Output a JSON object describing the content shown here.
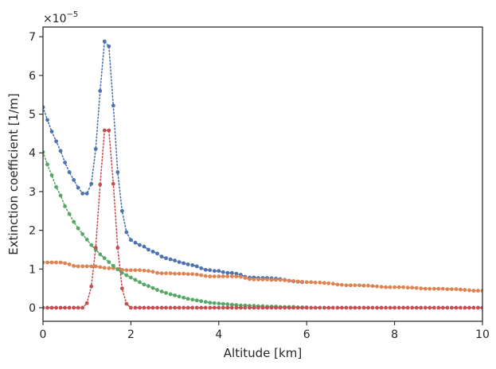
{
  "chart_data": {
    "type": "line",
    "title": "",
    "xlabel": "Altitude [km]",
    "ylabel": "Extinction coefficient [1/m]",
    "y_scale_label": "×10",
    "y_scale_exponent": "−5",
    "xlim": [
      0,
      10
    ],
    "ylim": [
      -0.35,
      7.25
    ],
    "y_multiplier": 1e-05,
    "x_ticks": [
      0,
      2,
      4,
      6,
      8,
      10
    ],
    "x_tick_labels": [
      "0",
      "2",
      "4",
      "6",
      "8",
      "10"
    ],
    "y_ticks": [
      0,
      1,
      2,
      3,
      4,
      5,
      6,
      7
    ],
    "y_tick_labels": [
      "0",
      "1",
      "2",
      "3",
      "4",
      "5",
      "6",
      "7"
    ],
    "grid": false,
    "legend": "none",
    "line_style": "dotted",
    "marker": "circle",
    "series": [
      {
        "color": "#4c72b0",
        "x": [
          0.0,
          0.1,
          0.2,
          0.3,
          0.4,
          0.5,
          0.6,
          0.7,
          0.8,
          0.9,
          1.0,
          1.1,
          1.2,
          1.3,
          1.4,
          1.5,
          1.6,
          1.7,
          1.8,
          1.9,
          2.0,
          2.1,
          2.2,
          2.3,
          2.4,
          2.5,
          2.6,
          2.7,
          2.8,
          2.9,
          3.0,
          3.1,
          3.2,
          3.3,
          3.4,
          3.5,
          3.6,
          3.7,
          3.8,
          3.9,
          4.0,
          4.1,
          4.2,
          4.3,
          4.4,
          4.5,
          4.6,
          4.7,
          4.8,
          4.9,
          5.0,
          5.1,
          5.2,
          5.3,
          5.4,
          5.5,
          5.6,
          5.7,
          5.8,
          5.9
        ],
        "values": [
          5.18,
          4.85,
          4.55,
          4.3,
          4.05,
          3.75,
          3.5,
          3.3,
          3.1,
          2.95,
          2.95,
          3.2,
          4.1,
          5.6,
          6.88,
          6.75,
          5.22,
          3.5,
          2.5,
          1.95,
          1.75,
          1.68,
          1.62,
          1.58,
          1.5,
          1.45,
          1.4,
          1.32,
          1.28,
          1.25,
          1.22,
          1.18,
          1.15,
          1.12,
          1.1,
          1.07,
          1.02,
          0.98,
          0.97,
          0.95,
          0.95,
          0.92,
          0.9,
          0.9,
          0.88,
          0.85,
          0.8,
          0.78,
          0.78,
          0.77,
          0.77,
          0.77,
          0.76,
          0.75,
          0.74,
          0.72,
          0.7,
          0.68,
          0.67,
          0.66
        ]
      },
      {
        "color": "#dd8452",
        "x": [
          0.0,
          0.1,
          0.2,
          0.3,
          0.4,
          0.5,
          0.6,
          0.7,
          0.8,
          0.9,
          1.0,
          1.1,
          1.2,
          1.3,
          1.4,
          1.5,
          1.6,
          1.7,
          1.8,
          1.9,
          2.0,
          2.1,
          2.2,
          2.3,
          2.4,
          2.5,
          2.6,
          2.7,
          2.8,
          2.9,
          3.0,
          3.1,
          3.2,
          3.3,
          3.4,
          3.5,
          3.6,
          3.7,
          3.8,
          3.9,
          4.0,
          4.1,
          4.2,
          4.3,
          4.4,
          4.5,
          4.6,
          4.7,
          4.8,
          4.9,
          5.0,
          5.1,
          5.2,
          5.3,
          5.4,
          5.5,
          5.6,
          5.7,
          5.8,
          5.9,
          6.0,
          6.1,
          6.2,
          6.3,
          6.4,
          6.5,
          6.6,
          6.7,
          6.8,
          6.9,
          7.0,
          7.1,
          7.2,
          7.3,
          7.4,
          7.5,
          7.6,
          7.7,
          7.8,
          7.9,
          8.0,
          8.1,
          8.2,
          8.3,
          8.4,
          8.5,
          8.6,
          8.7,
          8.8,
          8.9,
          9.0,
          9.1,
          9.2,
          9.3,
          9.4,
          9.5,
          9.6,
          9.7,
          9.8,
          9.9,
          10.0
        ],
        "values": [
          1.17,
          1.17,
          1.17,
          1.17,
          1.17,
          1.15,
          1.12,
          1.08,
          1.07,
          1.07,
          1.07,
          1.07,
          1.07,
          1.05,
          1.03,
          1.02,
          1.02,
          1.0,
          0.98,
          0.97,
          0.97,
          0.97,
          0.97,
          0.96,
          0.95,
          0.93,
          0.9,
          0.89,
          0.89,
          0.89,
          0.88,
          0.88,
          0.88,
          0.87,
          0.87,
          0.86,
          0.84,
          0.82,
          0.81,
          0.81,
          0.81,
          0.81,
          0.81,
          0.81,
          0.81,
          0.8,
          0.77,
          0.74,
          0.73,
          0.73,
          0.73,
          0.73,
          0.72,
          0.72,
          0.72,
          0.71,
          0.7,
          0.69,
          0.68,
          0.67,
          0.66,
          0.66,
          0.65,
          0.65,
          0.64,
          0.63,
          0.62,
          0.6,
          0.59,
          0.58,
          0.58,
          0.58,
          0.58,
          0.57,
          0.57,
          0.56,
          0.55,
          0.54,
          0.53,
          0.53,
          0.53,
          0.53,
          0.53,
          0.52,
          0.52,
          0.51,
          0.5,
          0.49,
          0.49,
          0.49,
          0.49,
          0.49,
          0.48,
          0.48,
          0.48,
          0.47,
          0.46,
          0.45,
          0.44,
          0.44,
          0.44
        ]
      },
      {
        "color": "#55a868",
        "x": [
          0.0,
          0.1,
          0.2,
          0.3,
          0.4,
          0.5,
          0.6,
          0.7,
          0.8,
          0.9,
          1.0,
          1.1,
          1.2,
          1.3,
          1.4,
          1.5,
          1.6,
          1.7,
          1.8,
          1.9,
          2.0,
          2.1,
          2.2,
          2.3,
          2.4,
          2.5,
          2.6,
          2.7,
          2.8,
          2.9,
          3.0,
          3.1,
          3.2,
          3.3,
          3.4,
          3.5,
          3.6,
          3.7,
          3.8,
          3.9,
          4.0,
          4.1,
          4.2,
          4.3,
          4.4,
          4.5,
          4.6,
          4.7,
          4.8,
          4.9,
          5.0,
          5.1,
          5.2,
          5.3,
          5.4,
          5.5,
          5.6,
          5.7,
          5.8,
          5.9,
          6.0
        ],
        "values": [
          4.02,
          3.7,
          3.42,
          3.12,
          2.9,
          2.62,
          2.42,
          2.22,
          2.05,
          1.9,
          1.76,
          1.62,
          1.5,
          1.38,
          1.28,
          1.18,
          1.08,
          0.99,
          0.9,
          0.84,
          0.78,
          0.72,
          0.66,
          0.6,
          0.56,
          0.51,
          0.46,
          0.42,
          0.38,
          0.35,
          0.32,
          0.29,
          0.26,
          0.23,
          0.21,
          0.19,
          0.17,
          0.15,
          0.13,
          0.12,
          0.11,
          0.1,
          0.09,
          0.08,
          0.07,
          0.06,
          0.06,
          0.05,
          0.05,
          0.04,
          0.04,
          0.03,
          0.03,
          0.03,
          0.02,
          0.02,
          0.02,
          0.02,
          0.01,
          0.01,
          0.01
        ]
      },
      {
        "color": "#c44e52",
        "x": [
          0.0,
          0.1,
          0.2,
          0.3,
          0.4,
          0.5,
          0.6,
          0.7,
          0.8,
          0.9,
          1.0,
          1.1,
          1.2,
          1.3,
          1.4,
          1.5,
          1.6,
          1.7,
          1.8,
          1.9,
          2.0,
          2.1,
          2.2,
          2.3,
          2.4,
          2.5,
          2.6,
          2.7,
          2.8,
          2.9,
          3.0,
          3.1,
          3.2,
          3.3,
          3.4,
          3.5,
          3.6,
          3.7,
          3.8,
          3.9,
          4.0,
          4.1,
          4.2,
          4.3,
          4.4,
          4.5,
          4.6,
          4.7,
          4.8,
          4.9,
          5.0,
          5.1,
          5.2,
          5.3,
          5.4,
          5.5,
          5.6,
          5.7,
          5.8,
          5.9,
          6.0,
          6.1,
          6.2,
          6.3,
          6.4,
          6.5,
          6.6,
          6.7,
          6.8,
          6.9,
          7.0,
          7.1,
          7.2,
          7.3,
          7.4,
          7.5,
          7.6,
          7.7,
          7.8,
          7.9,
          8.0,
          8.1,
          8.2,
          8.3,
          8.4,
          8.5,
          8.6,
          8.7,
          8.8,
          8.9,
          9.0,
          9.1,
          9.2,
          9.3,
          9.4,
          9.5,
          9.6,
          9.7,
          9.8,
          9.9,
          10.0
        ],
        "values": [
          0.0,
          0.0,
          0.0,
          0.0,
          0.0,
          0.0,
          0.0,
          0.0,
          0.0,
          0.0,
          0.12,
          0.55,
          1.55,
          3.18,
          4.58,
          4.58,
          3.2,
          1.55,
          0.5,
          0.1,
          0.0,
          0.0,
          0.0,
          0.0,
          0.0,
          0.0,
          0.0,
          0.0,
          0.0,
          0.0,
          0.0,
          0.0,
          0.0,
          0.0,
          0.0,
          0.0,
          0.0,
          0.0,
          0.0,
          0.0,
          0.0,
          0.0,
          0.0,
          0.0,
          0.0,
          0.0,
          0.0,
          0.0,
          0.0,
          0.0,
          0.0,
          0.0,
          0.0,
          0.0,
          0.0,
          0.0,
          0.0,
          0.0,
          0.0,
          0.0,
          0.0,
          0.0,
          0.0,
          0.0,
          0.0,
          0.0,
          0.0,
          0.0,
          0.0,
          0.0,
          0.0,
          0.0,
          0.0,
          0.0,
          0.0,
          0.0,
          0.0,
          0.0,
          0.0,
          0.0,
          0.0,
          0.0,
          0.0,
          0.0,
          0.0,
          0.0,
          0.0,
          0.0,
          0.0,
          0.0,
          0.0,
          0.0,
          0.0,
          0.0,
          0.0,
          0.0,
          0.0,
          0.0,
          0.0,
          0.0,
          0.0
        ]
      }
    ]
  }
}
